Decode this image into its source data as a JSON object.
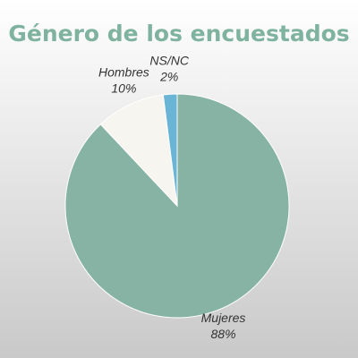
{
  "chart_data": {
    "type": "pie",
    "title": "Género de los encuestados",
    "categories": [
      "Mujeres",
      "Hombres",
      "NS/NC"
    ],
    "values": [
      88,
      10,
      2
    ],
    "value_labels": [
      "88%",
      "10%",
      "2%"
    ],
    "colors": [
      "#87b3a5",
      "#f7f5f0",
      "#6ab4d6"
    ]
  }
}
